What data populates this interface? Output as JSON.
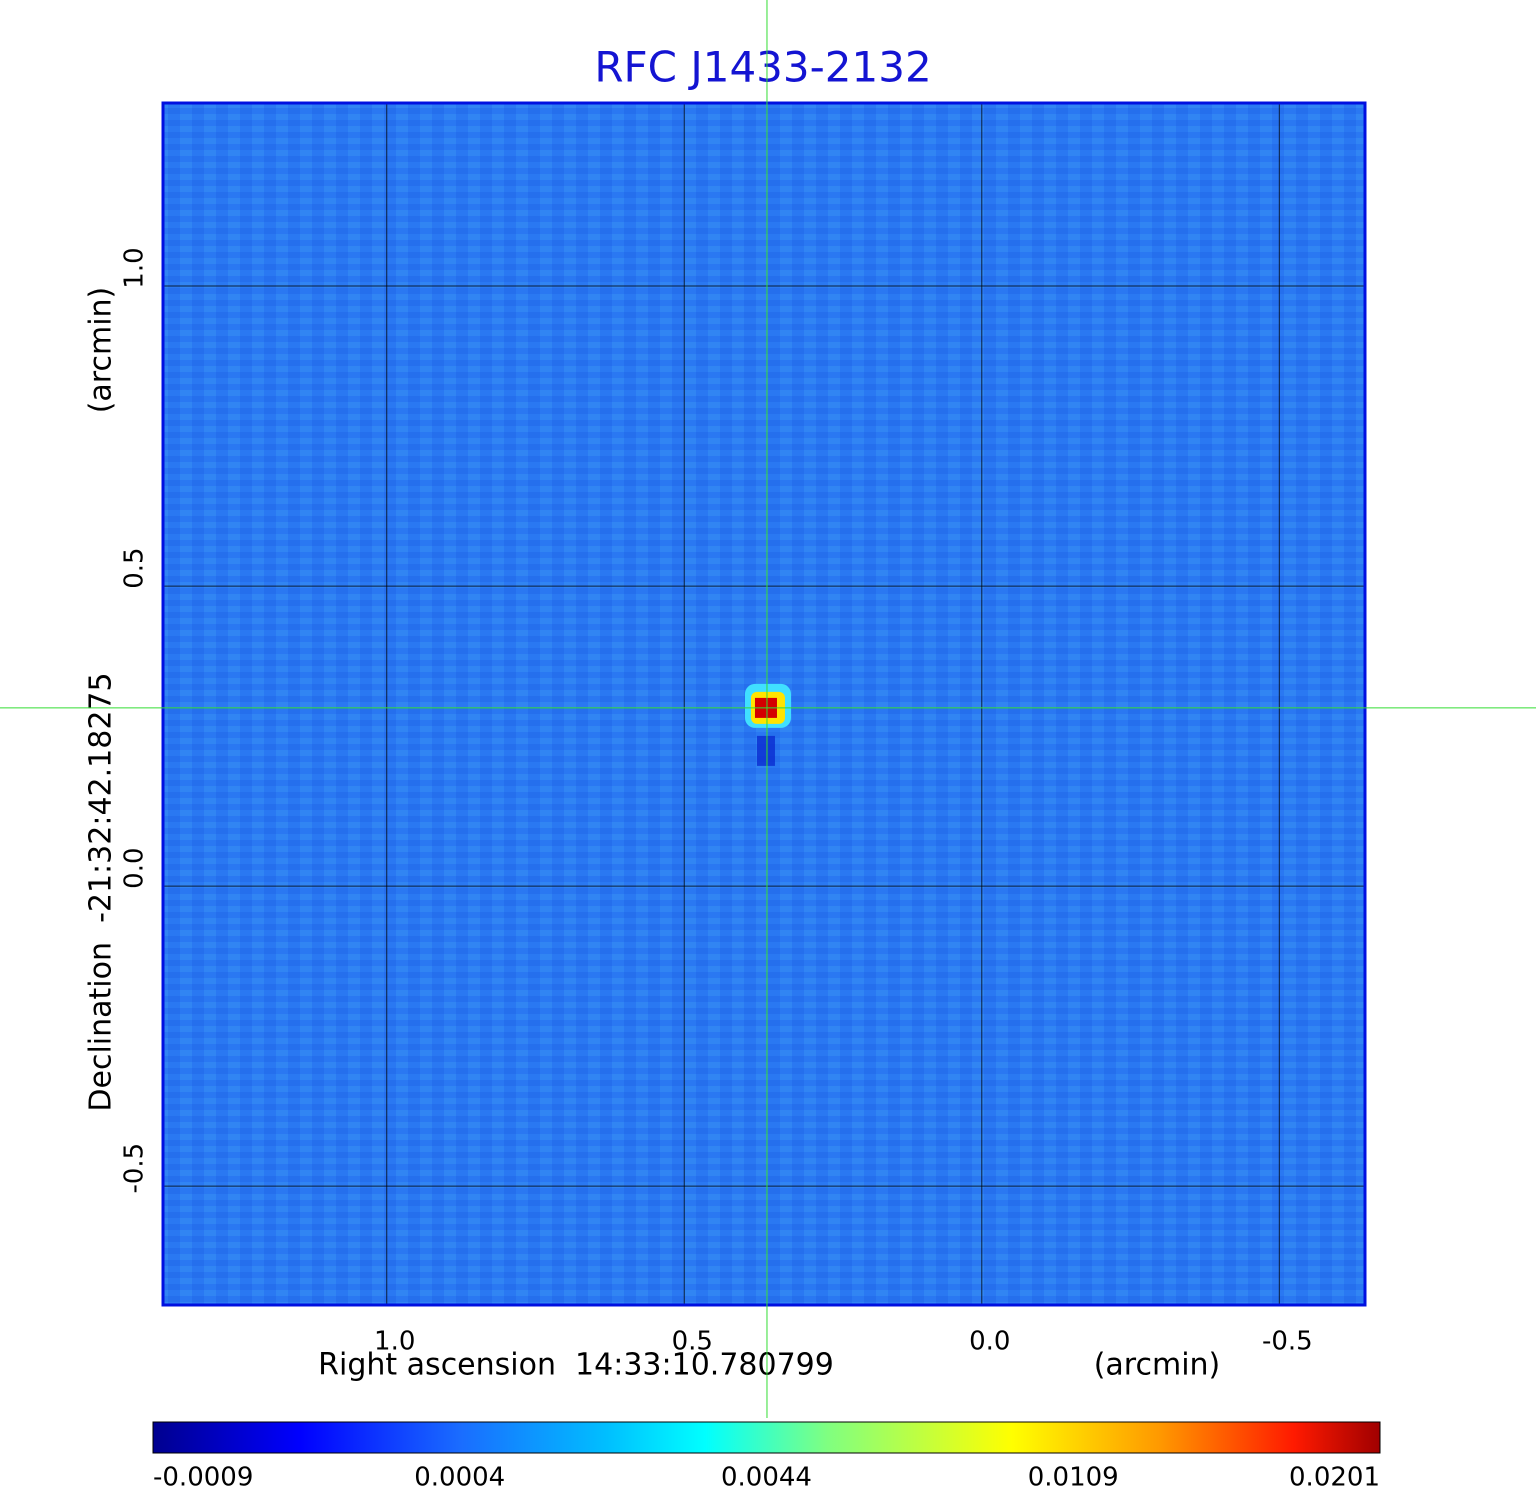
{
  "chart_data": {
    "type": "image",
    "title": "RFC J1433-2132",
    "xlabel": "Right ascension  14:33:10.780799",
    "xunit": "(arcmin)",
    "ylabel": "Declination  -21:32:42.18275",
    "yunit": "(arcmin)",
    "xlim": [
      1.376,
      -0.644
    ],
    "ylim": [
      -0.698,
      1.305
    ],
    "xticks": [
      {
        "value": 1,
        "label": "1.0"
      },
      0.5,
      {
        "value": 0,
        "label": "0.0"
      },
      -0.5
    ],
    "yticks": [
      {
        "value": 1,
        "label": "1.0"
      },
      0.5,
      {
        "value": 0,
        "label": "0.0"
      },
      -0.5
    ],
    "grid": true,
    "background_color": "#2a78f2",
    "crosshair": {
      "x": 0.361,
      "y": 0.297,
      "color": "#33dd33"
    },
    "source": {
      "x": 0.361,
      "y": 0.297,
      "peak": 0.0201
    },
    "colorbar_ticks": [
      -0.0009,
      0.0004,
      0.0044,
      0.0109,
      0.0201
    ]
  }
}
